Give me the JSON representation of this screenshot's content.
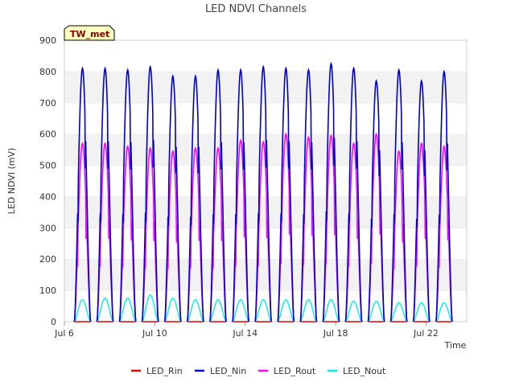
{
  "chart_data": {
    "type": "line",
    "title": "LED NDVI Channels",
    "xlabel": "Time",
    "ylabel": "LED NDVI (mV)",
    "badge": "TW_met",
    "ylim": [
      0,
      900
    ],
    "xlim_days": [
      6,
      23.8
    ],
    "y_ticks": [
      0,
      100,
      200,
      300,
      400,
      500,
      600,
      700,
      800,
      900
    ],
    "x_ticks": [
      {
        "label": "Jul 6",
        "day": 6
      },
      {
        "label": "Jul 10",
        "day": 10
      },
      {
        "label": "Jul 14",
        "day": 14
      },
      {
        "label": "Jul 18",
        "day": 18
      },
      {
        "label": "Jul 22",
        "day": 22
      }
    ],
    "grid": "horizontal bands",
    "legend_position": "bottom",
    "series": [
      {
        "name": "LED_Rin",
        "color": "#dd0000",
        "daily_peaks": [
          0,
          0,
          0,
          0,
          0,
          0,
          0,
          0,
          0,
          0,
          0,
          0,
          0,
          0,
          0,
          0,
          0
        ]
      },
      {
        "name": "LED_Nin",
        "color": "#0000cc",
        "daily_peaks": [
          810,
          810,
          805,
          815,
          785,
          785,
          805,
          805,
          815,
          810,
          805,
          825,
          810,
          770,
          805,
          770,
          800
        ]
      },
      {
        "name": "LED_Rout",
        "color": "#ff00ff",
        "daily_peaks": [
          570,
          570,
          560,
          555,
          545,
          555,
          555,
          580,
          575,
          600,
          590,
          595,
          570,
          600,
          545,
          570,
          560
        ]
      },
      {
        "name": "LED_Nout",
        "color": "#00eeee",
        "daily_peaks": [
          70,
          75,
          75,
          85,
          75,
          70,
          70,
          70,
          70,
          70,
          70,
          70,
          65,
          65,
          60,
          60,
          60
        ]
      }
    ],
    "days": [
      6.8,
      7.8,
      8.8,
      9.8,
      10.8,
      11.8,
      12.8,
      13.8,
      14.8,
      15.8,
      16.8,
      17.8,
      18.8,
      19.8,
      20.8,
      21.8,
      22.8
    ]
  }
}
